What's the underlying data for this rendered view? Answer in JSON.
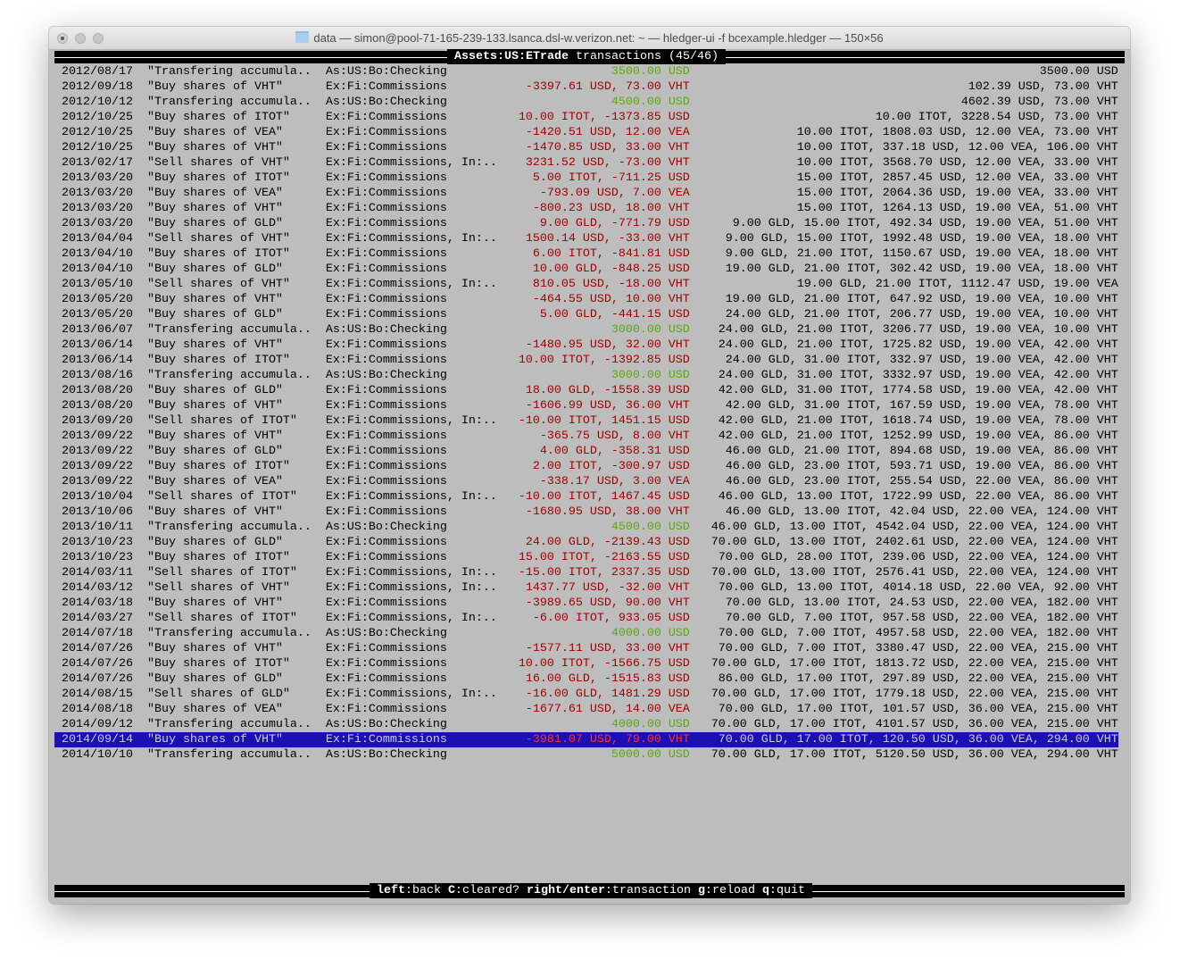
{
  "window": {
    "title": "data — simon@pool-71-165-239-133.lsanca.dsl-w.verizon.net: ~ — hledger-ui -f bcexample.hledger — 150×56"
  },
  "header": {
    "account": "Assets:US:ETrade",
    "suffix": " transactions (45/46)"
  },
  "footer": {
    "keys": [
      {
        "key": "left",
        "action": "back"
      },
      {
        "key": "C",
        "action": "cleared?"
      },
      {
        "key": "right/enter",
        "action": "transaction"
      },
      {
        "key": "g",
        "action": "reload"
      },
      {
        "key": "q",
        "action": "quit"
      }
    ]
  },
  "colors": {
    "negative": "#a30000",
    "positive": "#5aaa0e",
    "selection": "#1c0fb3",
    "background": "#bdbdbd"
  },
  "selected_index": 44,
  "columns": [
    "date",
    "description",
    "other_accounts",
    "change",
    "balance"
  ],
  "rows": [
    [
      "2012/08/17",
      "\"Transfering accumula..",
      "As:US:Bo:Checking",
      "3500.00 USD",
      "3500.00 USD"
    ],
    [
      "2012/09/18",
      "\"Buy shares of VHT\"",
      "Ex:Fi:Commissions",
      "-3397.61 USD, 73.00 VHT",
      "102.39 USD, 73.00 VHT"
    ],
    [
      "2012/10/12",
      "\"Transfering accumula..",
      "As:US:Bo:Checking",
      "4500.00 USD",
      "4602.39 USD, 73.00 VHT"
    ],
    [
      "2012/10/25",
      "\"Buy shares of ITOT\"",
      "Ex:Fi:Commissions",
      "10.00 ITOT, -1373.85 USD",
      "10.00 ITOT, 3228.54 USD, 73.00 VHT"
    ],
    [
      "2012/10/25",
      "\"Buy shares of VEA\"",
      "Ex:Fi:Commissions",
      "-1420.51 USD, 12.00 VEA",
      "10.00 ITOT, 1808.03 USD, 12.00 VEA, 73.00 VHT"
    ],
    [
      "2012/10/25",
      "\"Buy shares of VHT\"",
      "Ex:Fi:Commissions",
      "-1470.85 USD, 33.00 VHT",
      "10.00 ITOT, 337.18 USD, 12.00 VEA, 106.00 VHT"
    ],
    [
      "2013/02/17",
      "\"Sell shares of VHT\"",
      "Ex:Fi:Commissions, In:..",
      "3231.52 USD, -73.00 VHT",
      "10.00 ITOT, 3568.70 USD, 12.00 VEA, 33.00 VHT"
    ],
    [
      "2013/03/20",
      "\"Buy shares of ITOT\"",
      "Ex:Fi:Commissions",
      "5.00 ITOT, -711.25 USD",
      "15.00 ITOT, 2857.45 USD, 12.00 VEA, 33.00 VHT"
    ],
    [
      "2013/03/20",
      "\"Buy shares of VEA\"",
      "Ex:Fi:Commissions",
      "-793.09 USD, 7.00 VEA",
      "15.00 ITOT, 2064.36 USD, 19.00 VEA, 33.00 VHT"
    ],
    [
      "2013/03/20",
      "\"Buy shares of VHT\"",
      "Ex:Fi:Commissions",
      "-800.23 USD, 18.00 VHT",
      "15.00 ITOT, 1264.13 USD, 19.00 VEA, 51.00 VHT"
    ],
    [
      "2013/03/20",
      "\"Buy shares of GLD\"",
      "Ex:Fi:Commissions",
      "9.00 GLD, -771.79 USD",
      "9.00 GLD, 15.00 ITOT, 492.34 USD, 19.00 VEA, 51.00 VHT"
    ],
    [
      "2013/04/04",
      "\"Sell shares of VHT\"",
      "Ex:Fi:Commissions, In:..",
      "1500.14 USD, -33.00 VHT",
      "9.00 GLD, 15.00 ITOT, 1992.48 USD, 19.00 VEA, 18.00 VHT"
    ],
    [
      "2013/04/10",
      "\"Buy shares of ITOT\"",
      "Ex:Fi:Commissions",
      "6.00 ITOT, -841.81 USD",
      "9.00 GLD, 21.00 ITOT, 1150.67 USD, 19.00 VEA, 18.00 VHT"
    ],
    [
      "2013/04/10",
      "\"Buy shares of GLD\"",
      "Ex:Fi:Commissions",
      "10.00 GLD, -848.25 USD",
      "19.00 GLD, 21.00 ITOT, 302.42 USD, 19.00 VEA, 18.00 VHT"
    ],
    [
      "2013/05/10",
      "\"Sell shares of VHT\"",
      "Ex:Fi:Commissions, In:..",
      "810.05 USD, -18.00 VHT",
      "19.00 GLD, 21.00 ITOT, 1112.47 USD, 19.00 VEA"
    ],
    [
      "2013/05/20",
      "\"Buy shares of VHT\"",
      "Ex:Fi:Commissions",
      "-464.55 USD, 10.00 VHT",
      "19.00 GLD, 21.00 ITOT, 647.92 USD, 19.00 VEA, 10.00 VHT"
    ],
    [
      "2013/05/20",
      "\"Buy shares of GLD\"",
      "Ex:Fi:Commissions",
      "5.00 GLD, -441.15 USD",
      "24.00 GLD, 21.00 ITOT, 206.77 USD, 19.00 VEA, 10.00 VHT"
    ],
    [
      "2013/06/07",
      "\"Transfering accumula..",
      "As:US:Bo:Checking",
      "3000.00 USD",
      "24.00 GLD, 21.00 ITOT, 3206.77 USD, 19.00 VEA, 10.00 VHT"
    ],
    [
      "2013/06/14",
      "\"Buy shares of VHT\"",
      "Ex:Fi:Commissions",
      "-1480.95 USD, 32.00 VHT",
      "24.00 GLD, 21.00 ITOT, 1725.82 USD, 19.00 VEA, 42.00 VHT"
    ],
    [
      "2013/06/14",
      "\"Buy shares of ITOT\"",
      "Ex:Fi:Commissions",
      "10.00 ITOT, -1392.85 USD",
      "24.00 GLD, 31.00 ITOT, 332.97 USD, 19.00 VEA, 42.00 VHT"
    ],
    [
      "2013/08/16",
      "\"Transfering accumula..",
      "As:US:Bo:Checking",
      "3000.00 USD",
      "24.00 GLD, 31.00 ITOT, 3332.97 USD, 19.00 VEA, 42.00 VHT"
    ],
    [
      "2013/08/20",
      "\"Buy shares of GLD\"",
      "Ex:Fi:Commissions",
      "18.00 GLD, -1558.39 USD",
      "42.00 GLD, 31.00 ITOT, 1774.58 USD, 19.00 VEA, 42.00 VHT"
    ],
    [
      "2013/08/20",
      "\"Buy shares of VHT\"",
      "Ex:Fi:Commissions",
      "-1606.99 USD, 36.00 VHT",
      "42.00 GLD, 31.00 ITOT, 167.59 USD, 19.00 VEA, 78.00 VHT"
    ],
    [
      "2013/09/20",
      "\"Sell shares of ITOT\"",
      "Ex:Fi:Commissions, In:..",
      "-10.00 ITOT, 1451.15 USD",
      "42.00 GLD, 21.00 ITOT, 1618.74 USD, 19.00 VEA, 78.00 VHT"
    ],
    [
      "2013/09/22",
      "\"Buy shares of VHT\"",
      "Ex:Fi:Commissions",
      "-365.75 USD, 8.00 VHT",
      "42.00 GLD, 21.00 ITOT, 1252.99 USD, 19.00 VEA, 86.00 VHT"
    ],
    [
      "2013/09/22",
      "\"Buy shares of GLD\"",
      "Ex:Fi:Commissions",
      "4.00 GLD, -358.31 USD",
      "46.00 GLD, 21.00 ITOT, 894.68 USD, 19.00 VEA, 86.00 VHT"
    ],
    [
      "2013/09/22",
      "\"Buy shares of ITOT\"",
      "Ex:Fi:Commissions",
      "2.00 ITOT, -300.97 USD",
      "46.00 GLD, 23.00 ITOT, 593.71 USD, 19.00 VEA, 86.00 VHT"
    ],
    [
      "2013/09/22",
      "\"Buy shares of VEA\"",
      "Ex:Fi:Commissions",
      "-338.17 USD, 3.00 VEA",
      "46.00 GLD, 23.00 ITOT, 255.54 USD, 22.00 VEA, 86.00 VHT"
    ],
    [
      "2013/10/04",
      "\"Sell shares of ITOT\"",
      "Ex:Fi:Commissions, In:..",
      "-10.00 ITOT, 1467.45 USD",
      "46.00 GLD, 13.00 ITOT, 1722.99 USD, 22.00 VEA, 86.00 VHT"
    ],
    [
      "2013/10/06",
      "\"Buy shares of VHT\"",
      "Ex:Fi:Commissions",
      "-1680.95 USD, 38.00 VHT",
      "46.00 GLD, 13.00 ITOT, 42.04 USD, 22.00 VEA, 124.00 VHT"
    ],
    [
      "2013/10/11",
      "\"Transfering accumula..",
      "As:US:Bo:Checking",
      "4500.00 USD",
      "46.00 GLD, 13.00 ITOT, 4542.04 USD, 22.00 VEA, 124.00 VHT"
    ],
    [
      "2013/10/23",
      "\"Buy shares of GLD\"",
      "Ex:Fi:Commissions",
      "24.00 GLD, -2139.43 USD",
      "70.00 GLD, 13.00 ITOT, 2402.61 USD, 22.00 VEA, 124.00 VHT"
    ],
    [
      "2013/10/23",
      "\"Buy shares of ITOT\"",
      "Ex:Fi:Commissions",
      "15.00 ITOT, -2163.55 USD",
      "70.00 GLD, 28.00 ITOT, 239.06 USD, 22.00 VEA, 124.00 VHT"
    ],
    [
      "2014/03/11",
      "\"Sell shares of ITOT\"",
      "Ex:Fi:Commissions, In:..",
      "-15.00 ITOT, 2337.35 USD",
      "70.00 GLD, 13.00 ITOT, 2576.41 USD, 22.00 VEA, 124.00 VHT"
    ],
    [
      "2014/03/12",
      "\"Sell shares of VHT\"",
      "Ex:Fi:Commissions, In:..",
      "1437.77 USD, -32.00 VHT",
      "70.00 GLD, 13.00 ITOT, 4014.18 USD, 22.00 VEA, 92.00 VHT"
    ],
    [
      "2014/03/18",
      "\"Buy shares of VHT\"",
      "Ex:Fi:Commissions",
      "-3989.65 USD, 90.00 VHT",
      "70.00 GLD, 13.00 ITOT, 24.53 USD, 22.00 VEA, 182.00 VHT"
    ],
    [
      "2014/03/27",
      "\"Sell shares of ITOT\"",
      "Ex:Fi:Commissions, In:..",
      "-6.00 ITOT, 933.05 USD",
      "70.00 GLD, 7.00 ITOT, 957.58 USD, 22.00 VEA, 182.00 VHT"
    ],
    [
      "2014/07/18",
      "\"Transfering accumula..",
      "As:US:Bo:Checking",
      "4000.00 USD",
      "70.00 GLD, 7.00 ITOT, 4957.58 USD, 22.00 VEA, 182.00 VHT"
    ],
    [
      "2014/07/26",
      "\"Buy shares of VHT\"",
      "Ex:Fi:Commissions",
      "-1577.11 USD, 33.00 VHT",
      "70.00 GLD, 7.00 ITOT, 3380.47 USD, 22.00 VEA, 215.00 VHT"
    ],
    [
      "2014/07/26",
      "\"Buy shares of ITOT\"",
      "Ex:Fi:Commissions",
      "10.00 ITOT, -1566.75 USD",
      "70.00 GLD, 17.00 ITOT, 1813.72 USD, 22.00 VEA, 215.00 VHT"
    ],
    [
      "2014/07/26",
      "\"Buy shares of GLD\"",
      "Ex:Fi:Commissions",
      "16.00 GLD, -1515.83 USD",
      "86.00 GLD, 17.00 ITOT, 297.89 USD, 22.00 VEA, 215.00 VHT"
    ],
    [
      "2014/08/15",
      "\"Sell shares of GLD\"",
      "Ex:Fi:Commissions, In:..",
      "-16.00 GLD, 1481.29 USD",
      "70.00 GLD, 17.00 ITOT, 1779.18 USD, 22.00 VEA, 215.00 VHT"
    ],
    [
      "2014/08/18",
      "\"Buy shares of VEA\"",
      "Ex:Fi:Commissions",
      "-1677.61 USD, 14.00 VEA",
      "70.00 GLD, 17.00 ITOT, 101.57 USD, 36.00 VEA, 215.00 VHT"
    ],
    [
      "2014/09/12",
      "\"Transfering accumula..",
      "As:US:Bo:Checking",
      "4000.00 USD",
      "70.00 GLD, 17.00 ITOT, 4101.57 USD, 36.00 VEA, 215.00 VHT"
    ],
    [
      "2014/09/14",
      "\"Buy shares of VHT\"",
      "Ex:Fi:Commissions",
      "-3981.07 USD, 79.00 VHT",
      "70.00 GLD, 17.00 ITOT, 120.50 USD, 36.00 VEA, 294.00 VHT"
    ],
    [
      "2014/10/10",
      "\"Transfering accumula..",
      "As:US:Bo:Checking",
      "5000.00 USD",
      "70.00 GLD, 17.00 ITOT, 5120.50 USD, 36.00 VEA, 294.00 VHT"
    ]
  ]
}
